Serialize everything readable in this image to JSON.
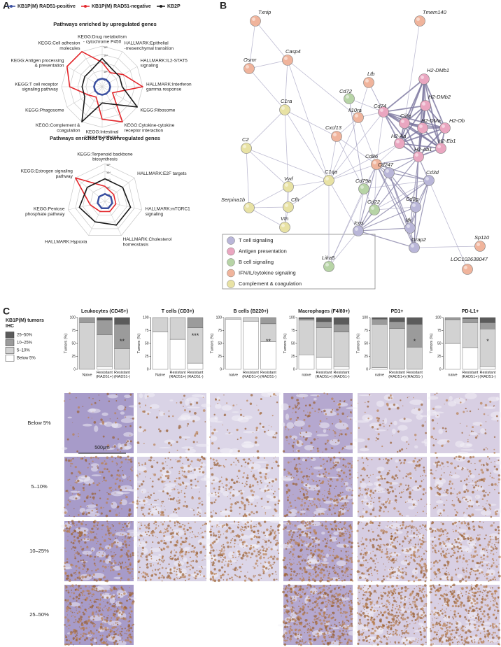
{
  "panel_labels": [
    "A",
    "B",
    "C"
  ],
  "chart_data": [
    {
      "type": "radar",
      "rscale": "log",
      "rlim": [
        1,
        100000
      ],
      "rticks": [
        {
          "value": 10,
          "label": "10¹"
        },
        {
          "value": 100,
          "label": "10²"
        },
        {
          "value": 1000,
          "label": "10³"
        },
        {
          "value": 10000,
          "label": "10⁴"
        },
        {
          "value": 100000,
          "label": "10⁵"
        }
      ],
      "series": [
        {
          "name": "KB1P(M) RAD51-positive",
          "color": "#3a4fa0"
        },
        {
          "name": "KB1P(M) RAD51-negative",
          "color": "#e3262b"
        },
        {
          "name": "KB2P",
          "color": "#1a1a1a"
        }
      ],
      "panels": [
        {
          "title": "Pathways enriched by upregulated genes",
          "categories": [
            "KEGG:Drug metabolism\n- cytochrome P450",
            "HALLMARK:Epithelial\n-mesenchymal transition",
            "HALLMARK:IL2-STAT5\nsignaling",
            "HALLMARK:Interferon\ngamma response",
            "KEGG:Ribosome",
            "KEGG:Cytokine-cytokine\nreceptor interaction",
            "KEGG:Intestinal\nimmune network",
            "KEGG:Complement &\ncoagulation",
            "KEGG:Phagosome",
            "KEGG:T cell receptor\nsignaling pathway",
            "KEGG:Antigen processing\n& presentation",
            "KEGG:Cell adhesion\nmolecules"
          ],
          "series": [
            {
              "values": [
                10,
                10,
                10,
                10,
                10,
                10,
                10,
                10,
                10,
                10,
                10,
                10
              ]
            },
            {
              "values": [
                1000,
                100,
                1000,
                100000,
                30,
                100000,
                10000,
                30,
                100,
                10000,
                100000,
                100000
              ]
            },
            {
              "values": [
                3000,
                300,
                300,
                300,
                100000,
                300,
                100,
                100000,
                300,
                300,
                300,
                300
              ]
            }
          ]
        },
        {
          "title": "Pathways enriched by downregulated genes",
          "categories": [
            "KEGG:Terpenoid backbone\nbiosynthesis",
            "HALLMARK:E2F targets",
            "HALLMARK:mTORC1\nsignaling",
            "HALLMARK:Cholesterol\nhomeostasis",
            "HALLMARK:Hypoxia",
            "KEGG:Pentose\nphosphate pathway",
            "KEGG:Estrogen signaling\npathway"
          ],
          "series": [
            {
              "values": [
                10,
                10,
                10,
                10,
                10,
                10,
                10
              ]
            },
            {
              "values": [
                100,
                30,
                30,
                30,
                30,
                100,
                100000
              ]
            },
            {
              "values": [
                1000,
                1000,
                3000,
                3000,
                1000,
                3000,
                1000
              ]
            }
          ]
        }
      ]
    },
    {
      "type": "bar",
      "stacked": true,
      "legend_title": "KB1P(M) tumors\nIHC",
      "ylabel": "Tumors (%)",
      "ylim": [
        0,
        100
      ],
      "yticks": [
        0,
        25,
        50,
        75,
        100
      ],
      "series": [
        {
          "name": "Below 5%",
          "color": "#ffffff"
        },
        {
          "name": "5–10%",
          "color": "#d2d2d2"
        },
        {
          "name": "10–25%",
          "color": "#9b9b9b"
        },
        {
          "name": "25–50%",
          "color": "#5b5b5b"
        }
      ],
      "panels": [
        {
          "title": "Leukocytes (CD45+)",
          "categories": [
            "Naive",
            "Resistant\n(RAD51+)",
            "Resistant\n(RAD51-)"
          ],
          "annotation": "**",
          "series": [
            {
              "values": [
                0,
                5,
                0
              ]
            },
            {
              "values": [
                90,
                62,
                40
              ]
            },
            {
              "values": [
                10,
                28,
                47
              ]
            },
            {
              "values": [
                0,
                5,
                13
              ]
            }
          ]
        },
        {
          "title": "T cells (CD3+)",
          "categories": [
            "Naive",
            "Resistant\n(RAD51+)",
            "Resistant\n(RAD51-)"
          ],
          "annotation": "***",
          "series": [
            {
              "values": [
                72,
                58,
                12
              ]
            },
            {
              "values": [
                28,
                42,
                68
              ]
            },
            {
              "values": [
                0,
                0,
                20
              ]
            },
            {
              "values": [
                0,
                0,
                0
              ]
            }
          ]
        },
        {
          "title": "B cells (B220+)",
          "categories": [
            "naive",
            "Resistant\n(RAD51+)",
            "Resistant\n(RAD51-)"
          ],
          "annotation": "**",
          "series": [
            {
              "values": [
                97,
                93,
                53
              ]
            },
            {
              "values": [
                3,
                7,
                35
              ]
            },
            {
              "values": [
                0,
                0,
                12
              ]
            },
            {
              "values": [
                0,
                0,
                0
              ]
            }
          ]
        },
        {
          "title": "Macrophages (F4/80+)",
          "categories": [
            "naive",
            "Resistant\n(RAD51+)",
            "Resistant\n(RAD51-)"
          ],
          "series": [
            {
              "values": [
                28,
                23,
                5
              ]
            },
            {
              "values": [
                67,
                57,
                67
              ]
            },
            {
              "values": [
                3,
                12,
                15
              ]
            },
            {
              "values": [
                2,
                8,
                13
              ]
            }
          ]
        },
        {
          "title": "PD1+",
          "categories": [
            "naive",
            "Resistant\n(RAD51+)",
            "Resistant\n(RAD51-)"
          ],
          "annotation": "*",
          "series": [
            {
              "values": [
                3,
                0,
                0
              ]
            },
            {
              "values": [
                84,
                79,
                43
              ]
            },
            {
              "values": [
                10,
                13,
                44
              ]
            },
            {
              "values": [
                3,
                8,
                13
              ]
            }
          ]
        },
        {
          "title": "PD-L1+",
          "categories": [
            "naive",
            "Resistant\n(RAD51+)",
            "Resistant\n(RAD51-)"
          ],
          "annotation": "*",
          "series": [
            {
              "values": [
                50,
                42,
                5
              ]
            },
            {
              "values": [
                46,
                48,
                73
              ]
            },
            {
              "values": [
                4,
                8,
                12
              ]
            },
            {
              "values": [
                0,
                2,
                10
              ]
            }
          ]
        }
      ]
    }
  ],
  "network": {
    "legend": [
      {
        "label": "T cell signaling",
        "color": "#b9b6d8"
      },
      {
        "label": "Antigen presentation",
        "color": "#eaa6c0"
      },
      {
        "label": "B cell signaling",
        "color": "#b7d4a6"
      },
      {
        "label": "IFN/IL/cytokine signaling",
        "color": "#f0b49c"
      },
      {
        "label": "Complement & coagulation",
        "color": "#e8e2a4"
      }
    ],
    "nodes": [
      {
        "label": "Txnip",
        "color": "#f0b49c"
      },
      {
        "label": "Tmem140",
        "color": "#f0b49c"
      },
      {
        "label": "Casp4",
        "color": "#f0b49c"
      },
      {
        "label": "Osmr",
        "color": "#f0b49c"
      },
      {
        "label": "Ltb",
        "color": "#f0b49c"
      },
      {
        "label": "H2-DMb1",
        "color": "#eaa6c0"
      },
      {
        "label": "H2-DMb2",
        "color": "#eaa6c0"
      },
      {
        "label": "H2-Ob",
        "color": "#eaa6c0"
      },
      {
        "label": "Cd72",
        "color": "#b7d4a6"
      },
      {
        "label": "Il10ra",
        "color": "#f0b49c"
      },
      {
        "label": "Cd74",
        "color": "#eaa6c0"
      },
      {
        "label": "Ciita",
        "color": "#eaa6c0"
      },
      {
        "label": "H2-DMa",
        "color": "#eaa6c0"
      },
      {
        "label": "H2-Aa",
        "color": "#eaa6c0"
      },
      {
        "label": "H2-Eb1",
        "color": "#eaa6c0"
      },
      {
        "label": "H2-Ab1",
        "color": "#eaa6c0"
      },
      {
        "label": "C1ra",
        "color": "#e8e2a4"
      },
      {
        "label": "C2",
        "color": "#e8e2a4"
      },
      {
        "label": "Cxcl13",
        "color": "#f0b49c"
      },
      {
        "label": "Cd86",
        "color": "#f0b49c"
      },
      {
        "label": "Cd247",
        "color": "#b9b6d8"
      },
      {
        "label": "Cd3d",
        "color": "#b9b6d8"
      },
      {
        "label": "C1qa",
        "color": "#e8e2a4"
      },
      {
        "label": "Vwf",
        "color": "#e8e2a4"
      },
      {
        "label": "Cfh",
        "color": "#e8e2a4"
      },
      {
        "label": "Serpina1b",
        "color": "#e8e2a4"
      },
      {
        "label": "Vtn",
        "color": "#e8e2a4"
      },
      {
        "label": "Cd79a",
        "color": "#b7d4a6"
      },
      {
        "label": "Cd22",
        "color": "#b7d4a6"
      },
      {
        "label": "Cd3g",
        "color": "#b9b6d8"
      },
      {
        "label": "Itk",
        "color": "#b9b6d8"
      },
      {
        "label": "Icos",
        "color": "#b9b6d8"
      },
      {
        "label": "Grap2",
        "color": "#b9b6d8"
      },
      {
        "label": "Sp110",
        "color": "#f0b49c"
      },
      {
        "label": "Lilra5",
        "color": "#b7d4a6"
      },
      {
        "label": "LOC102638047",
        "color": "#f0b49c"
      }
    ]
  },
  "ihc": {
    "rows": [
      "Below 5%",
      "5–10%",
      "10–25%",
      "25–50%"
    ],
    "scale_bar": "500μm"
  }
}
